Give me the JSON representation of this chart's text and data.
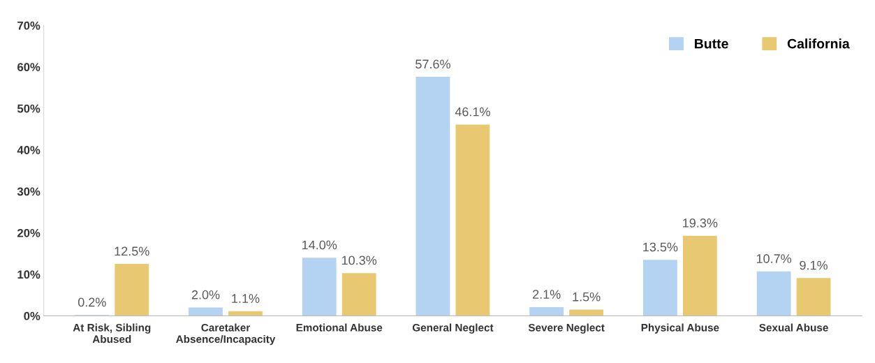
{
  "chart_data": {
    "type": "bar",
    "categories": [
      "At Risk, Sibling\nAbused",
      "Caretaker\nAbsence/Incapacity",
      "Emotional Abuse",
      "General Neglect",
      "Severe Neglect",
      "Physical Abuse",
      "Sexual Abuse"
    ],
    "series": [
      {
        "name": "Butte",
        "color": "#b4d2f2",
        "values": [
          0.2,
          2.0,
          14.0,
          57.6,
          2.1,
          13.5,
          10.7
        ],
        "value_labels": [
          "0.2%",
          "2.0%",
          "14.0%",
          "57.6%",
          "2.1%",
          "13.5%",
          "10.7%"
        ]
      },
      {
        "name": "California",
        "color": "#e8c972",
        "values": [
          12.5,
          1.1,
          10.3,
          46.1,
          1.5,
          19.3,
          9.1
        ],
        "value_labels": [
          "12.5%",
          "1.1%",
          "10.3%",
          "46.1%",
          "1.5%",
          "19.3%",
          "9.1%"
        ]
      }
    ],
    "ylim": [
      0,
      70
    ],
    "yticks": [
      {
        "value": 0,
        "label": "0%"
      },
      {
        "value": 10,
        "label": "10%"
      },
      {
        "value": 20,
        "label": "20%"
      },
      {
        "value": 30,
        "label": "30%"
      },
      {
        "value": 40,
        "label": "40%"
      },
      {
        "value": 50,
        "label": "50%"
      },
      {
        "value": 60,
        "label": "60%"
      },
      {
        "value": 70,
        "label": "70%"
      }
    ],
    "grid": false,
    "legend": "top right"
  }
}
